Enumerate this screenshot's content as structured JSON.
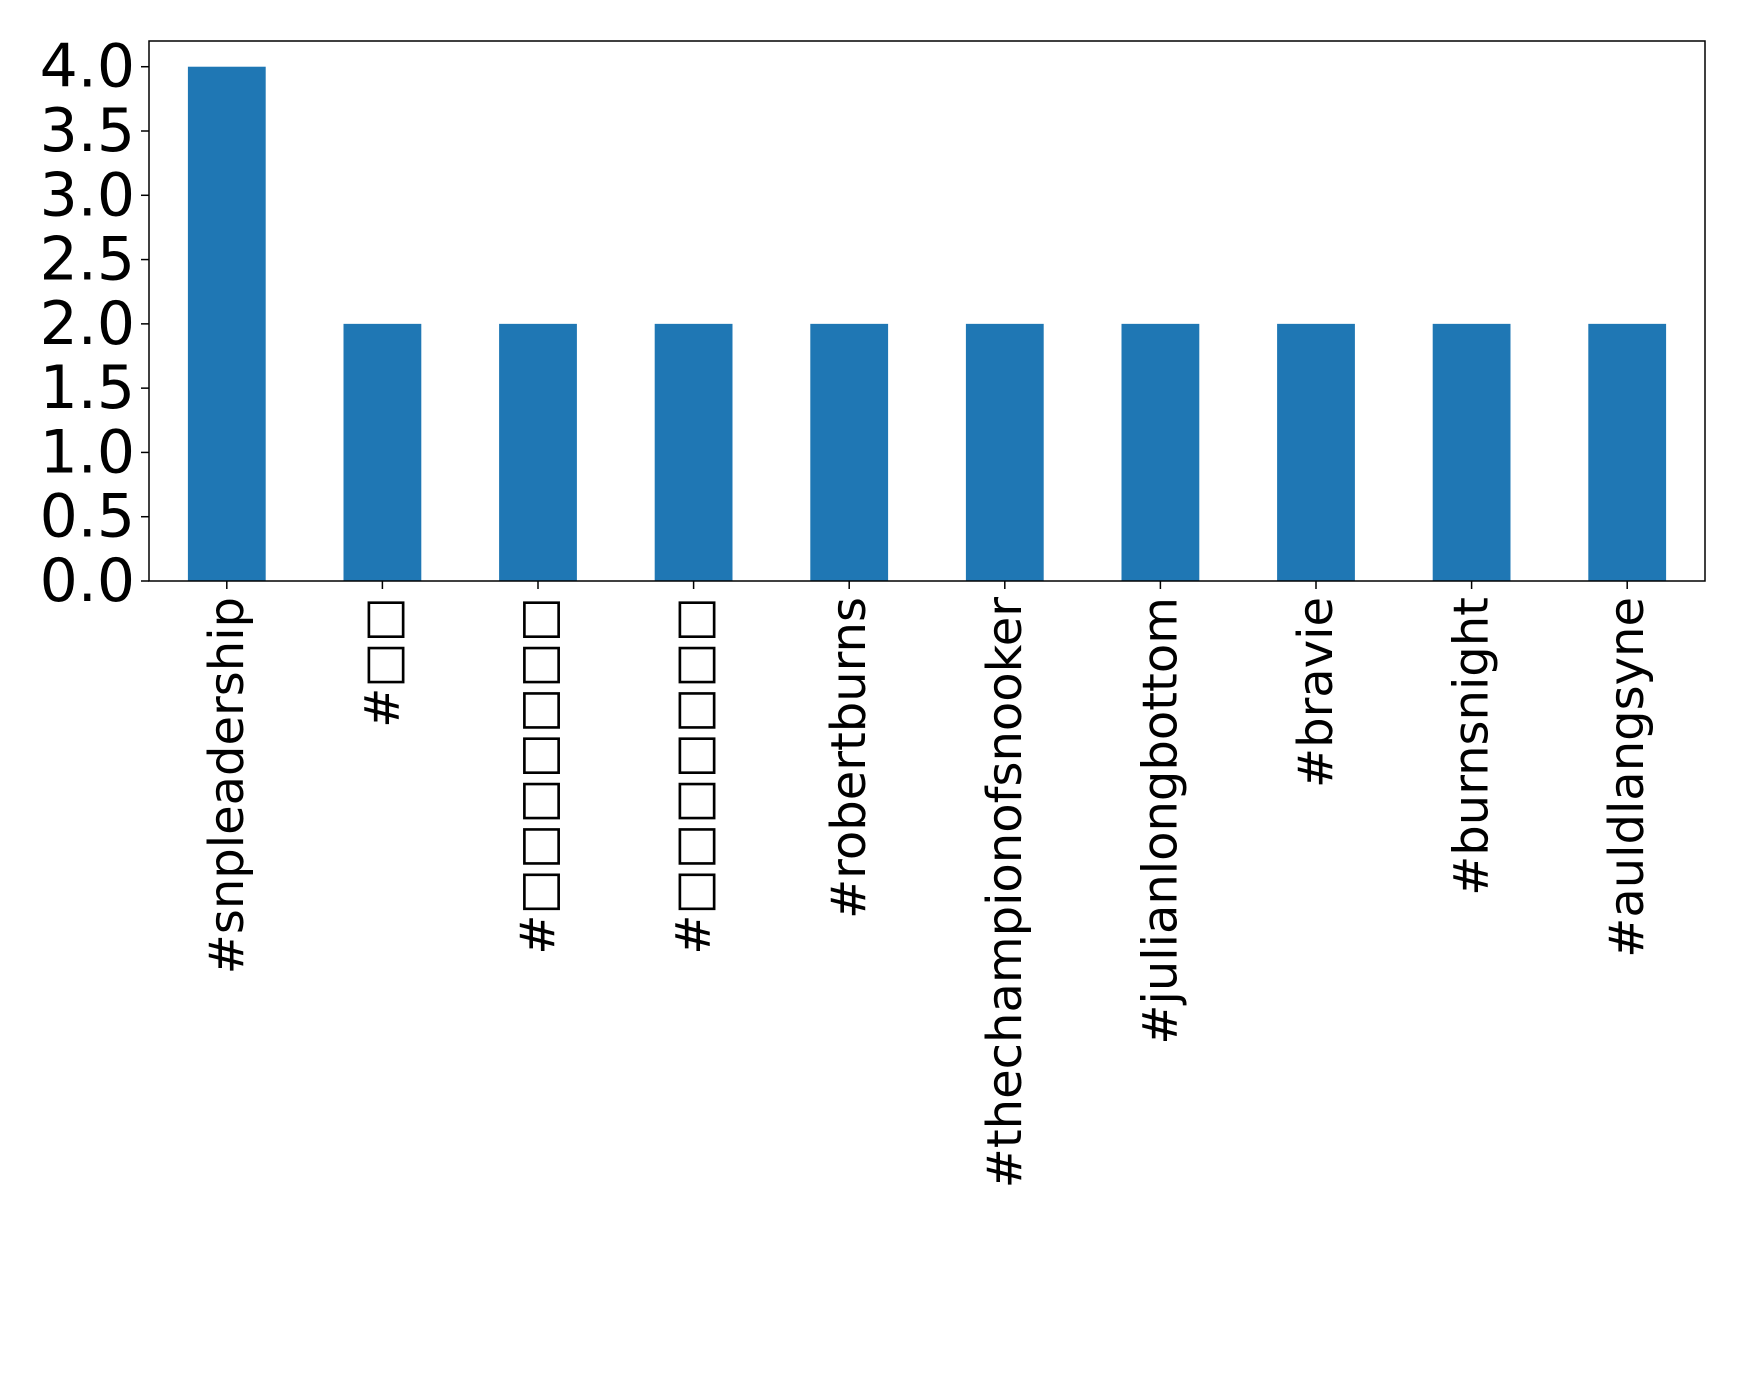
{
  "chart_data": {
    "type": "bar",
    "categories": [
      "#snpleadership",
      "#□□",
      "#□□□□□□□",
      "#□□□□□□□",
      "#robertburns",
      "#thechampionofsnooker",
      "#julianlongbottom",
      "#bravie",
      "#burnsnight",
      "#auldlangsyne"
    ],
    "values": [
      4,
      2,
      2,
      2,
      2,
      2,
      2,
      2,
      2,
      2
    ],
    "title": "",
    "xlabel": "",
    "ylabel": "",
    "ylim": [
      0,
      4.2
    ],
    "yticks": [
      "0.0",
      "0.5",
      "1.0",
      "1.5",
      "2.0",
      "2.5",
      "3.0",
      "3.5",
      "4.0"
    ],
    "grid": false,
    "legend": "none",
    "bar_color": "#1f77b4"
  }
}
